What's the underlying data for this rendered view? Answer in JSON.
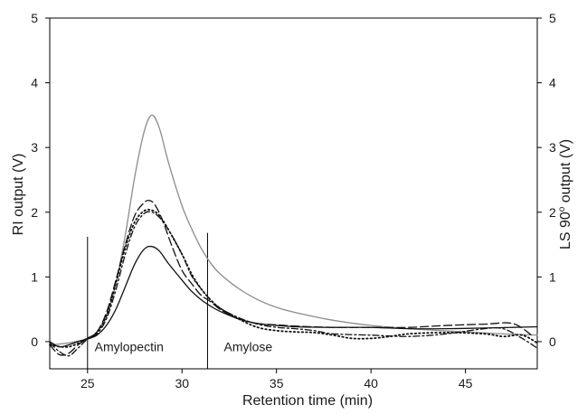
{
  "chart_data": {
    "type": "line",
    "xlabel": "Retention time (min)",
    "ylabel_left": "RI output (V)",
    "ylabel_right_base": "LS 90",
    "ylabel_right_sup": "o",
    "ylabel_right_tail": " output (V)",
    "xlim": [
      23,
      48.8
    ],
    "ylim": [
      -0.42,
      5
    ],
    "x_ticks": [
      25,
      30,
      35,
      40,
      45
    ],
    "y_ticks": [
      0,
      1,
      2,
      3,
      4,
      5
    ],
    "grid": false,
    "legend": "none",
    "annotations": [
      {
        "label": "Amylopectin",
        "x": 27.2,
        "y": -0.08
      },
      {
        "label": "Amylose",
        "x": 33.5,
        "y": -0.08
      }
    ],
    "dividers": [
      {
        "x": 25.0,
        "y_top": 1.62
      },
      {
        "x": 31.35,
        "y_top": 1.68
      }
    ],
    "series": [
      {
        "style": "gray-solid",
        "color": "#8c8c8c",
        "dash": "",
        "x": [
          23,
          24,
          25,
          25.5,
          26,
          26.5,
          27,
          27.5,
          28,
          28.4,
          28.8,
          29.3,
          30,
          30.5,
          31,
          31.5,
          32,
          33,
          34,
          35,
          36,
          38,
          40,
          42,
          45,
          47,
          48.8
        ],
        "y": [
          -0.05,
          -0.02,
          0.05,
          0.15,
          0.4,
          0.9,
          1.65,
          2.55,
          3.25,
          3.5,
          3.3,
          2.75,
          2.1,
          1.75,
          1.45,
          1.22,
          1.05,
          0.82,
          0.65,
          0.53,
          0.45,
          0.33,
          0.25,
          0.2,
          0.15,
          0.12,
          0.1
        ]
      },
      {
        "style": "black-solid",
        "color": "#111111",
        "dash": "",
        "x": [
          23,
          23.5,
          24,
          24.5,
          25,
          25.5,
          26,
          26.5,
          27,
          27.5,
          28,
          28.4,
          28.8,
          29.3,
          30,
          30.5,
          31,
          31.5,
          32,
          33,
          34,
          35,
          36,
          38,
          40,
          42,
          44,
          46,
          47.5,
          48.8
        ],
        "y": [
          0.0,
          -0.08,
          -0.05,
          0.0,
          0.04,
          0.1,
          0.25,
          0.5,
          0.85,
          1.2,
          1.43,
          1.47,
          1.4,
          1.2,
          0.95,
          0.78,
          0.65,
          0.55,
          0.47,
          0.35,
          0.28,
          0.25,
          0.23,
          0.22,
          0.22,
          0.2,
          0.2,
          0.21,
          0.22,
          0.23
        ]
      },
      {
        "style": "long-dash",
        "color": "#111111",
        "dash": "9 4",
        "x": [
          23,
          23.5,
          24,
          24.5,
          25,
          25.5,
          26,
          26.5,
          27,
          27.5,
          28,
          28.3,
          28.6,
          29,
          29.5,
          30,
          30.5,
          31,
          31.5,
          32,
          32.5,
          33,
          34,
          35,
          36,
          38,
          40,
          42,
          44,
          46,
          47.5,
          48.5
        ],
        "y": [
          -0.05,
          -0.2,
          -0.18,
          -0.05,
          0.05,
          0.15,
          0.45,
          0.95,
          1.5,
          1.95,
          2.15,
          2.18,
          2.1,
          1.85,
          1.45,
          1.1,
          0.9,
          0.72,
          0.62,
          0.5,
          0.42,
          0.35,
          0.28,
          0.26,
          0.24,
          0.22,
          0.22,
          0.22,
          0.25,
          0.27,
          0.28,
          0.1
        ]
      },
      {
        "style": "dash-dot",
        "color": "#111111",
        "dash": "7 3 2 3",
        "x": [
          23,
          23.5,
          24,
          24.5,
          25,
          25.5,
          26,
          26.5,
          27,
          27.5,
          28,
          28.4,
          28.8,
          29.3,
          30,
          30.5,
          31,
          31.5,
          32,
          33,
          34,
          35,
          36,
          37,
          38,
          40,
          42,
          44,
          46,
          47,
          48,
          48.8
        ],
        "y": [
          -0.02,
          -0.15,
          -0.22,
          -0.1,
          0.04,
          0.12,
          0.35,
          0.8,
          1.35,
          1.78,
          1.98,
          2.0,
          1.92,
          1.72,
          1.35,
          1.02,
          0.82,
          0.65,
          0.52,
          0.37,
          0.27,
          0.22,
          0.2,
          0.17,
          0.12,
          0.1,
          0.08,
          0.12,
          0.2,
          0.2,
          0.05,
          -0.1
        ]
      },
      {
        "style": "dotted",
        "color": "#111111",
        "dash": "1.5 3",
        "x": [
          23,
          24,
          25,
          25.5,
          26,
          26.5,
          27,
          27.5,
          28,
          28.4,
          28.8,
          29.3,
          30,
          30.5,
          31,
          31.5,
          32,
          33,
          34,
          35,
          36,
          37,
          38,
          39,
          40,
          41,
          42,
          44,
          46,
          47,
          48,
          48.8
        ],
        "y": [
          -0.05,
          -0.08,
          0.05,
          0.15,
          0.4,
          0.9,
          1.45,
          1.85,
          2.02,
          2.03,
          1.95,
          1.72,
          1.35,
          1.05,
          0.82,
          0.65,
          0.52,
          0.35,
          0.22,
          0.17,
          0.15,
          0.14,
          0.1,
          0.05,
          0.05,
          0.08,
          0.12,
          0.14,
          0.12,
          0.08,
          0.1,
          -0.02
        ]
      }
    ]
  }
}
